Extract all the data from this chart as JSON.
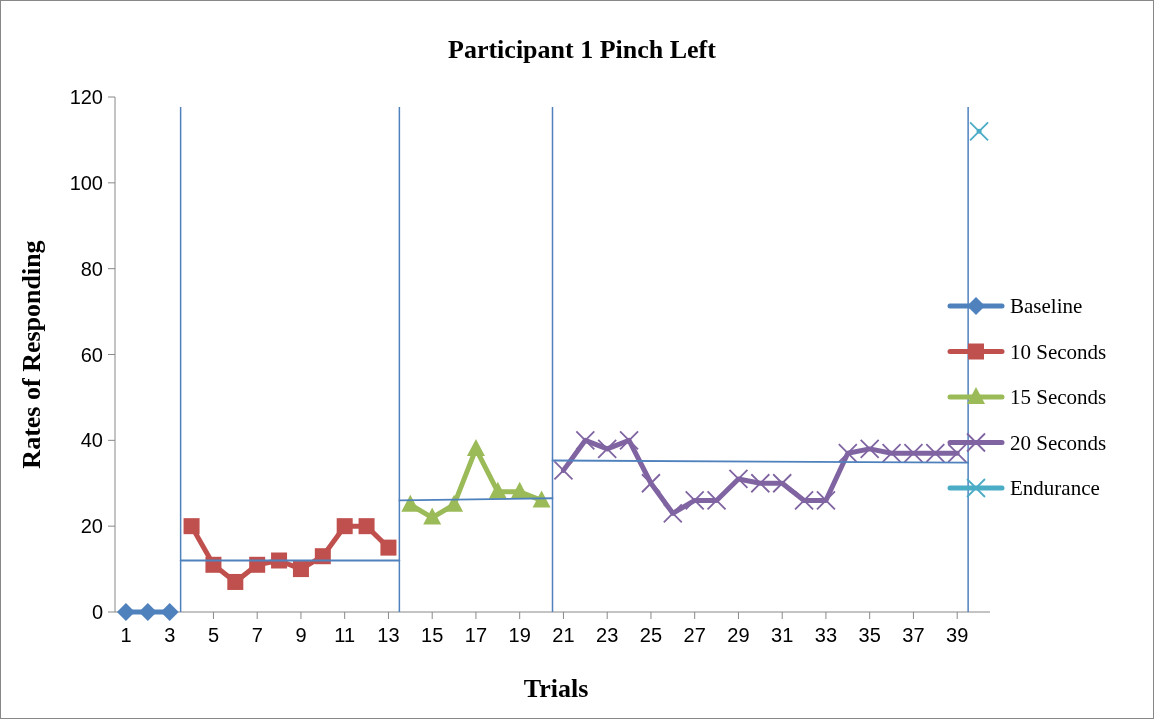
{
  "chart_data": {
    "type": "line",
    "title": "Participant 1 Pinch Left",
    "xlabel": "Trials",
    "ylabel": "Rates of Responding",
    "xlim": [
      0.5,
      40.5
    ],
    "xticks": [
      1,
      3,
      5,
      7,
      9,
      11,
      13,
      15,
      17,
      19,
      21,
      23,
      25,
      27,
      29,
      31,
      33,
      35,
      37,
      39
    ],
    "ylim": [
      0,
      120
    ],
    "yticks": [
      0,
      20,
      40,
      60,
      80,
      100,
      120
    ],
    "grid": false,
    "legend": "right",
    "series": [
      {
        "name": "Baseline",
        "color": "#4f81bd",
        "marker": "diamond",
        "x": [
          1,
          2,
          3
        ],
        "values": [
          0,
          0,
          0
        ]
      },
      {
        "name": "10 Seconds",
        "color": "#c0504d",
        "marker": "square",
        "x": [
          4,
          5,
          6,
          7,
          8,
          9,
          10,
          11,
          12,
          13
        ],
        "values": [
          20,
          11,
          7,
          11,
          12,
          10,
          13,
          20,
          20,
          15
        ]
      },
      {
        "name": "15 Seconds",
        "color": "#9bbb59",
        "marker": "triangle",
        "x": [
          14,
          15,
          16,
          17,
          18,
          19,
          20
        ],
        "values": [
          25,
          22,
          25,
          38,
          28,
          28,
          26
        ]
      },
      {
        "name": "20 Seconds",
        "color": "#8064a2",
        "marker": "cross",
        "x": [
          21,
          22,
          23,
          24,
          25,
          26,
          27,
          28,
          29,
          30,
          31,
          32,
          33,
          34,
          35,
          36,
          37,
          38,
          39
        ],
        "values": [
          33,
          40,
          38,
          40,
          30,
          23,
          26,
          26,
          31,
          30,
          30,
          26,
          26,
          37,
          38,
          37,
          37,
          37,
          37
        ]
      },
      {
        "name": "Endurance",
        "color": "#4bacc6",
        "marker": "cross",
        "x": [
          40
        ],
        "values": [
          112
        ]
      },
      {
        "type": "line",
        "color": "#4f81bd",
        "marker": "none",
        "x": [
          3.5,
          13.5
        ],
        "values": [
          12,
          12
        ]
      },
      {
        "type": "line",
        "color": "#4f81bd",
        "marker": "none",
        "x": [
          13.5,
          20.5
        ],
        "values": [
          26,
          26.5
        ]
      },
      {
        "type": "line",
        "color": "#4f81bd",
        "marker": "none",
        "x": [
          20.5,
          39.5
        ],
        "values": [
          35.3,
          34.8
        ]
      }
    ],
    "ref_lines": [
      {
        "axis": "x",
        "value": 3.5,
        "color": "#4f81bd"
      },
      {
        "axis": "x",
        "value": 13.5,
        "color": "#4f81bd"
      },
      {
        "axis": "x",
        "value": 20.5,
        "color": "#4f81bd"
      },
      {
        "axis": "x",
        "value": 39.5,
        "color": "#4f81bd"
      }
    ]
  }
}
